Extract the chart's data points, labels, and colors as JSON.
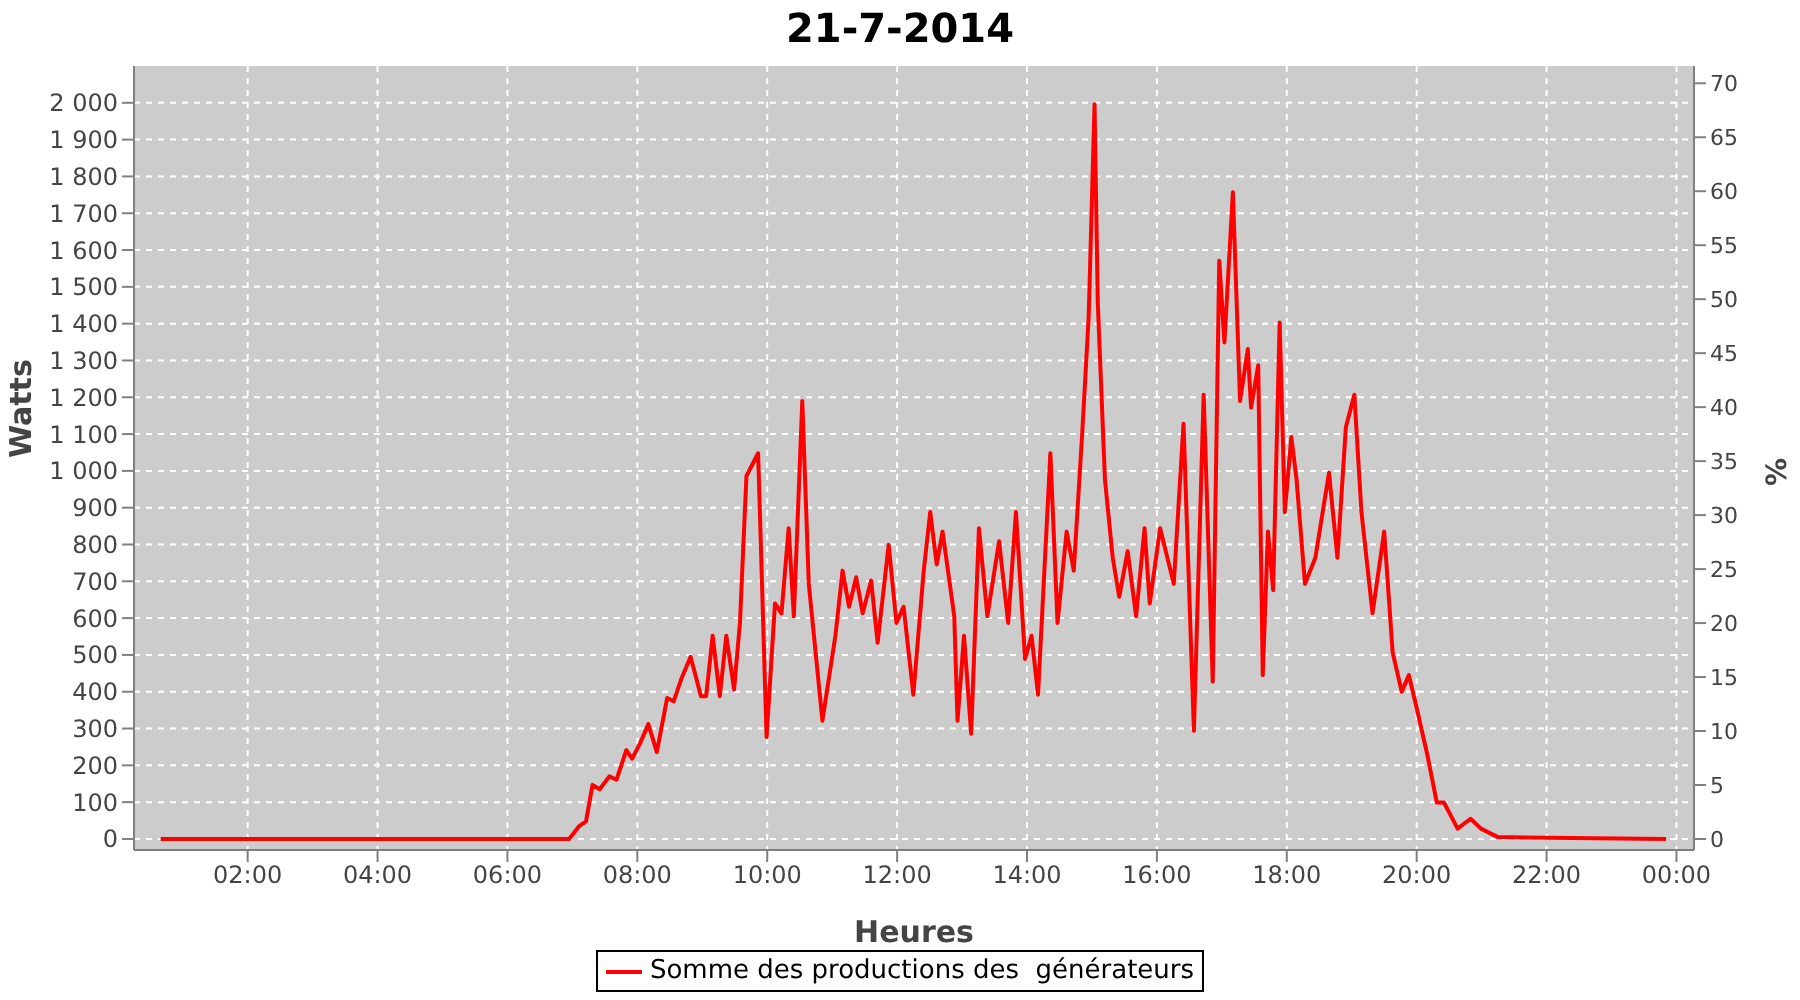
{
  "chart_data": {
    "type": "line",
    "title": "21-7-2014",
    "xlabel": "Heures",
    "ylabel": "Watts",
    "y2label": "%",
    "xlim": [
      0.25,
      24.27
    ],
    "xticks": [
      {
        "value": 2,
        "label": "02:00"
      },
      {
        "value": 4,
        "label": "04:00"
      },
      {
        "value": 6,
        "label": "06:00"
      },
      {
        "value": 8,
        "label": "08:00"
      },
      {
        "value": 10,
        "label": "10:00"
      },
      {
        "value": 12,
        "label": "12:00"
      },
      {
        "value": 14,
        "label": "14:00"
      },
      {
        "value": 16,
        "label": "16:00"
      },
      {
        "value": 18,
        "label": "18:00"
      },
      {
        "value": 20,
        "label": "20:00"
      },
      {
        "value": 22,
        "label": "22:00"
      },
      {
        "value": 24,
        "label": "00:00"
      }
    ],
    "ylim": [
      -30,
      2100
    ],
    "yticks": [
      0,
      100,
      200,
      300,
      400,
      500,
      600,
      700,
      800,
      900,
      {
        "value": 1000,
        "label": "1 000"
      },
      {
        "value": 1100,
        "label": "1 100"
      },
      {
        "value": 1200,
        "label": "1 200"
      },
      {
        "value": 1300,
        "label": "1 300"
      },
      {
        "value": 1400,
        "label": "1 400"
      },
      {
        "value": 1500,
        "label": "1 500"
      },
      {
        "value": 1600,
        "label": "1 600"
      },
      {
        "value": 1700,
        "label": "1 700"
      },
      {
        "value": 1800,
        "label": "1 800"
      },
      {
        "value": 1900,
        "label": "1 900"
      },
      {
        "value": 2000,
        "label": "2 000"
      }
    ],
    "y2lim": [
      -1.02,
      71.6
    ],
    "y2ticks": [
      0,
      5,
      10,
      15,
      20,
      25,
      30,
      35,
      40,
      45,
      50,
      55,
      60,
      65,
      70
    ],
    "grid": true,
    "legend": "bottom",
    "x": [
      0.66,
      4.09,
      5.65,
      6.95,
      7.1,
      7.21,
      7.31,
      7.42,
      7.57,
      7.68,
      7.83,
      7.92,
      8.04,
      8.17,
      8.3,
      8.46,
      8.56,
      8.68,
      8.82,
      8.98,
      9.06,
      9.16,
      9.27,
      9.37,
      9.49,
      9.58,
      9.68,
      9.86,
      9.99,
      10.12,
      10.22,
      10.33,
      10.41,
      10.54,
      10.64,
      10.85,
      11.05,
      11.16,
      11.26,
      11.37,
      11.47,
      11.6,
      11.7,
      11.87,
      11.99,
      12.1,
      12.25,
      12.41,
      12.51,
      12.61,
      12.7,
      12.88,
      12.93,
      13.03,
      13.14,
      13.26,
      13.39,
      13.57,
      13.71,
      13.83,
      13.97,
      14.07,
      14.17,
      14.36,
      14.47,
      14.61,
      14.72,
      14.85,
      14.95,
      15.04,
      15.09,
      15.2,
      15.32,
      15.42,
      15.55,
      15.68,
      15.81,
      15.89,
      16.05,
      16.26,
      16.41,
      16.57,
      16.72,
      16.86,
      16.96,
      17.04,
      17.17,
      17.28,
      17.4,
      17.45,
      17.56,
      17.63,
      17.71,
      17.79,
      17.89,
      17.97,
      18.07,
      18.15,
      18.28,
      18.44,
      18.65,
      18.78,
      18.91,
      19.04,
      19.15,
      19.32,
      19.5,
      19.63,
      19.77,
      19.88,
      20.0,
      20.16,
      20.31,
      20.42,
      20.63,
      20.83,
      20.99,
      21.25,
      23.84
    ],
    "series": [
      {
        "name": "Somme des productions des  générateurs",
        "color": "#ff0000",
        "values": [
          0,
          0,
          0,
          0,
          34,
          48,
          147,
          135,
          170,
          161,
          241,
          218,
          259,
          312,
          236,
          383,
          374,
          436,
          495,
          388,
          388,
          552,
          388,
          552,
          406,
          587,
          986,
          1048,
          277,
          640,
          613,
          844,
          605,
          1190,
          693,
          321,
          552,
          729,
          631,
          711,
          613,
          702,
          533,
          799,
          587,
          631,
          392,
          729,
          888,
          746,
          835,
          605,
          321,
          552,
          286,
          844,
          605,
          809,
          587,
          888,
          489,
          552,
          392,
          1048,
          587,
          835,
          729,
          1101,
          1420,
          1996,
          1456,
          977,
          764,
          658,
          782,
          605,
          844,
          640,
          844,
          693,
          1128,
          294,
          1207,
          427,
          1571,
          1349,
          1757,
          1190,
          1331,
          1172,
          1287,
          445,
          835,
          676,
          1403,
          888,
          1092,
          977,
          693,
          764,
          995,
          764,
          1119,
          1207,
          888,
          613,
          835,
          507,
          400,
          445,
          356,
          232,
          99,
          99,
          28,
          55,
          28,
          5,
          0
        ]
      }
    ]
  }
}
